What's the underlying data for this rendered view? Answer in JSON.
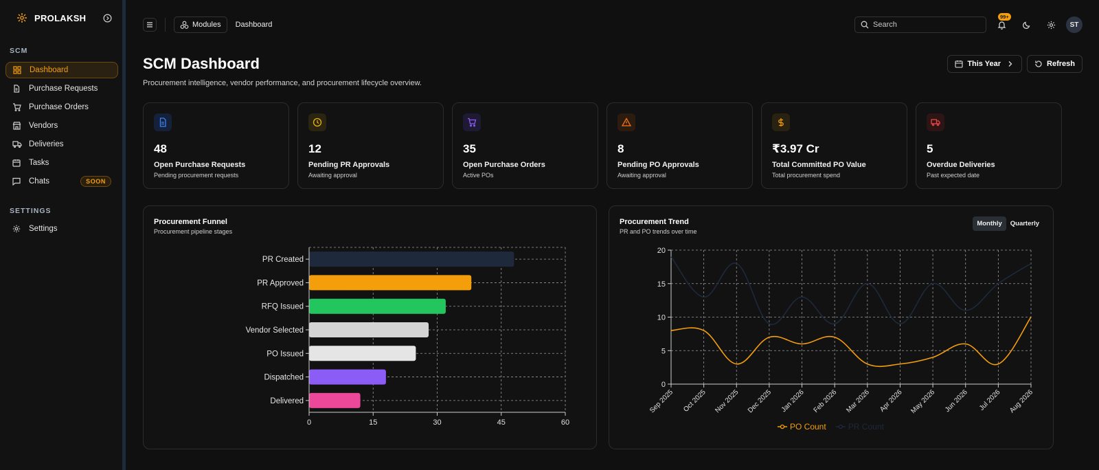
{
  "brand": {
    "name": "PROLAKSH"
  },
  "sidebar": {
    "scm_label": "SCM",
    "items": [
      {
        "label": "Dashboard",
        "icon": "grid-icon",
        "active": true
      },
      {
        "label": "Purchase Requests",
        "icon": "file-icon"
      },
      {
        "label": "Purchase Orders",
        "icon": "cart-icon"
      },
      {
        "label": "Vendors",
        "icon": "store-icon"
      },
      {
        "label": "Deliveries",
        "icon": "truck-icon"
      },
      {
        "label": "Tasks",
        "icon": "calendar-icon"
      },
      {
        "label": "Chats",
        "icon": "chat-icon",
        "badge": "SOON"
      }
    ],
    "settings_label": "SETTINGS",
    "settings_items": [
      {
        "label": "Settings",
        "icon": "gear-icon"
      }
    ]
  },
  "topbar": {
    "modules_label": "Modules",
    "breadcrumb": "Dashboard",
    "search_placeholder": "Search",
    "notif_count": "99+",
    "avatar_initials": "ST"
  },
  "header": {
    "title": "SCM Dashboard",
    "subtitle": "Procurement intelligence, vendor performance, and procurement lifecycle overview.",
    "range_label": "This Year",
    "refresh_label": "Refresh"
  },
  "kpis": [
    {
      "value": "48",
      "label": "Open Purchase Requests",
      "sub": "Pending procurement requests",
      "icon": "document-icon",
      "color": "#3b82f6",
      "bg": "#15213a"
    },
    {
      "value": "12",
      "label": "Pending PR Approvals",
      "sub": "Awaiting approval",
      "icon": "clock-icon",
      "color": "#eab308",
      "bg": "#2a2410"
    },
    {
      "value": "35",
      "label": "Open Purchase Orders",
      "sub": "Active POs",
      "icon": "cart-icon",
      "color": "#8b5cf6",
      "bg": "#1f1a33"
    },
    {
      "value": "8",
      "label": "Pending PO Approvals",
      "sub": "Awaiting approval",
      "icon": "warning-icon",
      "color": "#f97316",
      "bg": "#2c1c10"
    },
    {
      "value": "₹3.97 Cr",
      "label": "Total Committed PO Value",
      "sub": "Total procurement spend",
      "icon": "dollar-icon",
      "color": "#f59e0b",
      "bg": "#2a2210"
    },
    {
      "value": "5",
      "label": "Overdue Deliveries",
      "sub": "Past expected date",
      "icon": "truck-icon",
      "color": "#ef4444",
      "bg": "#2e1515"
    }
  ],
  "funnel": {
    "title": "Procurement Funnel",
    "subtitle": "Procurement pipeline stages"
  },
  "trend": {
    "title": "Procurement Trend",
    "subtitle": "PR and PO trends over time",
    "tabs": [
      "Monthly",
      "Quarterly"
    ]
  },
  "chart_data": [
    {
      "type": "bar",
      "orientation": "horizontal",
      "title": "Procurement Funnel",
      "categories": [
        "PR Created",
        "PR Approved",
        "RFQ Issued",
        "Vendor Selected",
        "PO Issued",
        "Dispatched",
        "Delivered"
      ],
      "values": [
        48,
        38,
        32,
        28,
        25,
        18,
        12
      ],
      "colors": [
        "#1e293b",
        "#f59e0b",
        "#22c55e",
        "#d4d4d4",
        "#e5e5e5",
        "#8b5cf6",
        "#ec4899"
      ],
      "xlim": [
        0,
        60
      ],
      "xticks": [
        0,
        15,
        30,
        45,
        60
      ],
      "grid": true
    },
    {
      "type": "line",
      "title": "Procurement Trend",
      "x": [
        "Sep 2025",
        "Oct 2025",
        "Nov 2025",
        "Dec 2025",
        "Jan 2026",
        "Feb 2026",
        "Mar 2026",
        "Apr 2026",
        "May 2026",
        "Jun 2026",
        "Jul 2026",
        "Aug 2026"
      ],
      "series": [
        {
          "name": "PO Count",
          "values": [
            8,
            8,
            3,
            7,
            6,
            7,
            3,
            3,
            4,
            6,
            3,
            10
          ],
          "color": "#f59e0b"
        },
        {
          "name": "PR Count",
          "values": [
            19,
            13,
            18,
            9,
            13,
            9,
            15,
            9,
            15,
            11,
            15,
            18
          ],
          "color": "#1e293b"
        }
      ],
      "ylim": [
        0,
        20
      ],
      "yticks": [
        0,
        5,
        10,
        15,
        20
      ],
      "grid": true,
      "legend": "bottom"
    }
  ]
}
